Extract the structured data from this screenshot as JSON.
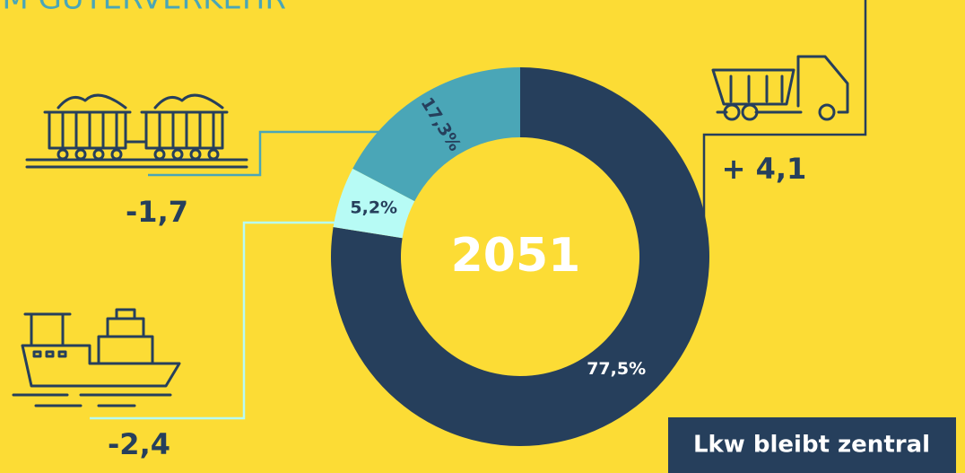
{
  "chart_data": {
    "type": "pie",
    "title": "E IM GÜTERVERKEHR",
    "center_label": "2051",
    "values": [
      77.5,
      5.2,
      17.3
    ],
    "value_labels": [
      "77,5%",
      "5,2%",
      "17,3%"
    ],
    "colors": [
      "#263f5c",
      "#b7fbf5",
      "#4aa6b7"
    ],
    "annotations": [
      "+ 4,1",
      "-2,4",
      "-1,7"
    ],
    "callout": "Lkw bleibt zentral"
  }
}
